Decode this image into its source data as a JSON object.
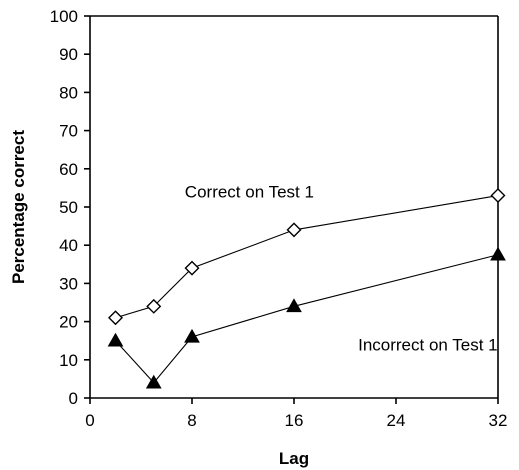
{
  "chart_data": {
    "type": "line",
    "title": "",
    "xlabel": "Lag",
    "ylabel": "Percentage correct",
    "xlim": [
      0,
      32
    ],
    "ylim": [
      0,
      100
    ],
    "xticks": [
      0,
      8,
      16,
      24,
      32
    ],
    "yticks": [
      0,
      10,
      20,
      30,
      40,
      50,
      60,
      70,
      80,
      90,
      100
    ],
    "grid": false,
    "legend": "none",
    "series": [
      {
        "marker": "diamond-open",
        "points": [
          {
            "x": 2,
            "y": 21
          },
          {
            "x": 5,
            "y": 24
          },
          {
            "x": 8,
            "y": 34
          },
          {
            "x": 16,
            "y": 44
          },
          {
            "x": 32,
            "y": 53
          }
        ]
      },
      {
        "marker": "triangle-filled",
        "points": [
          {
            "x": 2,
            "y": 15
          },
          {
            "x": 5,
            "y": 4
          },
          {
            "x": 8,
            "y": 16
          },
          {
            "x": 16,
            "y": 24
          },
          {
            "x": 32,
            "y": 37.5
          }
        ]
      }
    ],
    "annotations": [
      {
        "text": "Correct on Test 1",
        "x": 12.5,
        "y": 52.5
      },
      {
        "text": "Incorrect on Test 1",
        "x": 26.5,
        "y": 12.5
      }
    ]
  }
}
